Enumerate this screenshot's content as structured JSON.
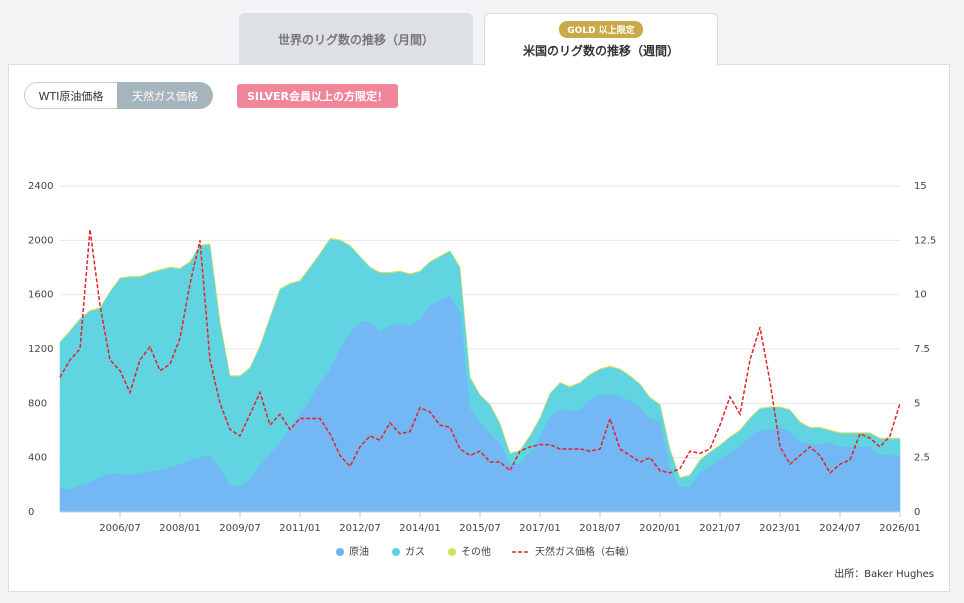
{
  "tabs": [
    {
      "label": "世界のリグ数の推移（月間）"
    },
    {
      "label": "米国のリグ数の推移（週間）",
      "badge": "GOLD 以上限定"
    }
  ],
  "toggles": [
    "WTI原油価格",
    "天然ガス価格"
  ],
  "notice": "SILVER会員以上の方限定！",
  "source": "出所：Baker Hughes",
  "chart_data": {
    "type": "area",
    "stacked": true,
    "grid": true,
    "legend": "bottom",
    "x": [
      "2005/01",
      "2005/04",
      "2005/07",
      "2005/10",
      "2006/01",
      "2006/04",
      "2006/07",
      "2006/10",
      "2007/01",
      "2007/04",
      "2007/07",
      "2007/10",
      "2008/01",
      "2008/04",
      "2008/07",
      "2008/10",
      "2009/01",
      "2009/04",
      "2009/07",
      "2009/10",
      "2010/01",
      "2010/04",
      "2010/07",
      "2010/10",
      "2011/01",
      "2011/04",
      "2011/07",
      "2011/10",
      "2012/01",
      "2012/04",
      "2012/07",
      "2012/10",
      "2013/01",
      "2013/04",
      "2013/07",
      "2013/10",
      "2014/01",
      "2014/04",
      "2014/07",
      "2014/10",
      "2015/01",
      "2015/04",
      "2015/07",
      "2015/10",
      "2016/01",
      "2016/04",
      "2016/07",
      "2016/10",
      "2017/01",
      "2017/04",
      "2017/07",
      "2017/10",
      "2018/01",
      "2018/04",
      "2018/07",
      "2018/10",
      "2019/01",
      "2019/04",
      "2019/07",
      "2019/10",
      "2020/01",
      "2020/04",
      "2020/07",
      "2020/10",
      "2021/01",
      "2021/04",
      "2021/07",
      "2021/10",
      "2022/01",
      "2022/04",
      "2022/07",
      "2022/10",
      "2023/01",
      "2023/04",
      "2023/07",
      "2023/10",
      "2024/01",
      "2024/04",
      "2024/07",
      "2024/10",
      "2025/01",
      "2025/04",
      "2025/07",
      "2025/10",
      "2026/01"
    ],
    "xticks": [
      "2006/07",
      "2008/01",
      "2009/07",
      "2011/01",
      "2012/07",
      "2014/01",
      "2015/07",
      "2017/01",
      "2018/07",
      "2020/01",
      "2021/07",
      "2023/01",
      "2024/07",
      "2026/01"
    ],
    "ylim": [
      0,
      2400
    ],
    "yticks": [
      0,
      400,
      800,
      1200,
      1600,
      2000,
      2400
    ],
    "y2lim": [
      0,
      15
    ],
    "y2ticks": [
      0,
      2.5,
      5,
      7.5,
      10,
      12.5,
      15
    ],
    "series": [
      {
        "name": "原油",
        "color": "#6cb4f4",
        "values": [
          180,
          160,
          200,
          220,
          260,
          280,
          280,
          270,
          290,
          300,
          310,
          330,
          350,
          380,
          400,
          420,
          320,
          200,
          190,
          240,
          350,
          430,
          510,
          620,
          720,
          830,
          950,
          1050,
          1200,
          1320,
          1400,
          1400,
          1330,
          1370,
          1390,
          1370,
          1420,
          1520,
          1560,
          1590,
          1480,
          760,
          660,
          580,
          510,
          350,
          360,
          440,
          560,
          700,
          760,
          740,
          750,
          830,
          860,
          870,
          850,
          820,
          770,
          690,
          670,
          330,
          180,
          190,
          290,
          340,
          390,
          440,
          490,
          550,
          600,
          610,
          620,
          590,
          520,
          500,
          500,
          510,
          480,
          480,
          480,
          480,
          420,
          420,
          410
        ]
      },
      {
        "name": "ガス",
        "color": "#58d2e0",
        "values": [
          1070,
          1170,
          1220,
          1260,
          1240,
          1340,
          1440,
          1460,
          1440,
          1460,
          1470,
          1470,
          1440,
          1460,
          1560,
          1550,
          1080,
          800,
          810,
          820,
          870,
          1000,
          1130,
          1060,
          980,
          970,
          950,
          960,
          800,
          640,
          480,
          400,
          430,
          390,
          380,
          380,
          350,
          320,
          320,
          330,
          320,
          230,
          200,
          210,
          140,
          80,
          90,
          120,
          130,
          170,
          190,
          180,
          200,
          180,
          190,
          200,
          200,
          180,
          170,
          150,
          120,
          130,
          70,
          80,
          90,
          100,
          100,
          110,
          110,
          140,
          160,
          160,
          150,
          160,
          140,
          120,
          120,
          90,
          100,
          100,
          100,
          100,
          120,
          120,
          130
        ]
      },
      {
        "name": "その他",
        "color": "#d4e157",
        "values": [
          5,
          5,
          5,
          5,
          5,
          5,
          5,
          5,
          5,
          5,
          5,
          5,
          5,
          5,
          5,
          5,
          5,
          5,
          5,
          5,
          5,
          5,
          5,
          5,
          5,
          5,
          5,
          5,
          5,
          5,
          5,
          5,
          5,
          5,
          5,
          5,
          5,
          5,
          5,
          5,
          5,
          5,
          5,
          5,
          5,
          5,
          5,
          5,
          5,
          5,
          5,
          5,
          5,
          5,
          5,
          5,
          5,
          5,
          5,
          5,
          5,
          5,
          5,
          5,
          5,
          5,
          5,
          5,
          5,
          5,
          5,
          5,
          5,
          5,
          5,
          5,
          5,
          5,
          5,
          5,
          5,
          5,
          5,
          5,
          5
        ]
      },
      {
        "name": "天然ガス価格（右軸）",
        "type": "line",
        "axis": "y2",
        "dashed": true,
        "color": "#e3232b",
        "values": [
          6.2,
          7.0,
          7.5,
          13,
          9.5,
          7.0,
          6.5,
          5.5,
          7.0,
          7.6,
          6.5,
          6.8,
          8.0,
          10.5,
          12.5,
          7.0,
          5.0,
          3.8,
          3.5,
          4.5,
          5.5,
          4.0,
          4.5,
          3.8,
          4.3,
          4.3,
          4.3,
          3.6,
          2.6,
          2.1,
          3.0,
          3.5,
          3.3,
          4.1,
          3.6,
          3.7,
          4.8,
          4.6,
          4.0,
          3.9,
          2.9,
          2.6,
          2.8,
          2.3,
          2.3,
          1.9,
          2.8,
          3.0,
          3.1,
          3.1,
          2.9,
          2.9,
          2.9,
          2.8,
          2.9,
          4.3,
          2.9,
          2.6,
          2.3,
          2.5,
          1.9,
          1.8,
          2.0,
          2.8,
          2.7,
          2.9,
          4.0,
          5.3,
          4.5,
          7.0,
          8.5,
          6.0,
          3.0,
          2.2,
          2.6,
          3.0,
          2.6,
          1.8,
          2.2,
          2.4,
          3.6,
          3.4,
          3.0,
          3.5,
          5.0
        ]
      }
    ]
  }
}
